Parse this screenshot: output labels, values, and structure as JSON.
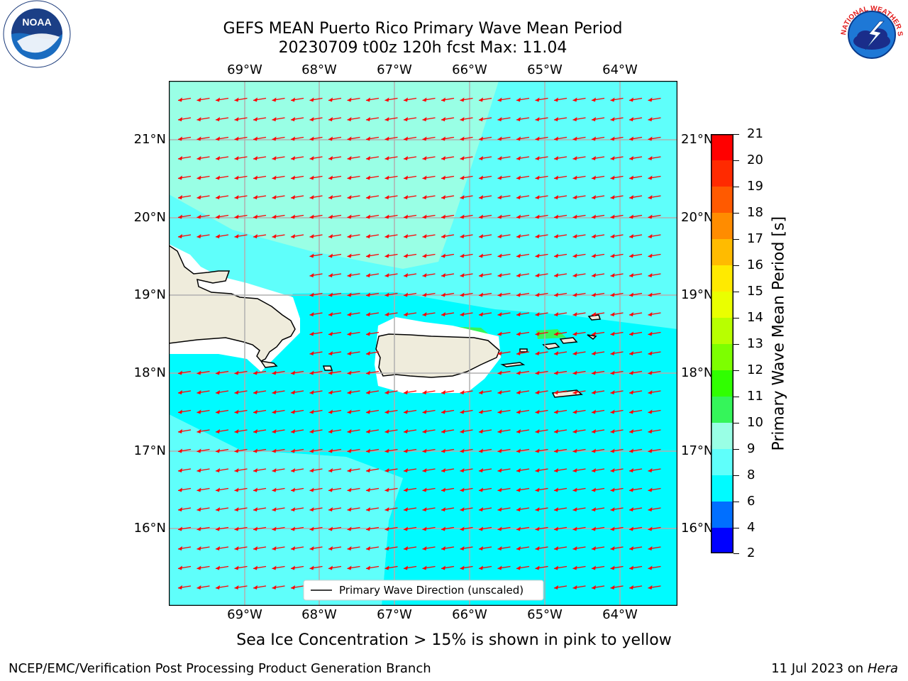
{
  "title": {
    "line1": "GEFS MEAN Puerto Rico Primary Wave Mean Period",
    "line2": "20230709 t00z 120h fcst   Max: 11.04"
  },
  "logos": {
    "noaa": "NOAA",
    "nws_ring": "NATIONAL WEATHER SERVICE",
    "noaa_ring": "NATIONAL OCEANIC AND ATMOSPHERIC ADMINISTRATION · U.S. DEPARTMENT OF COMMERCE"
  },
  "map": {
    "lon_labels": [
      "69°W",
      "68°W",
      "67°W",
      "66°W",
      "65°W",
      "64°W"
    ],
    "lat_labels": [
      "21°N",
      "20°N",
      "19°N",
      "18°N",
      "17°N",
      "16°N"
    ],
    "legend": "Primary Wave Direction (unscaled)",
    "arrow_direction": "west / west-southwest",
    "colors": {
      "band_8_9": "#5ffffb",
      "band_9_10": "#99ffe5",
      "band_6_8": "#00fbff",
      "land": "#efecdc",
      "arrow": "#ff0000",
      "grid": "#b0b0b0"
    }
  },
  "colorbar": {
    "label": "Primary Wave Mean Period [s]",
    "ticks": [
      "21",
      "20",
      "19",
      "18",
      "17",
      "16",
      "15",
      "14",
      "13",
      "12",
      "11",
      "10",
      "9",
      "8",
      "6",
      "4",
      "2"
    ],
    "colors_top_to_bottom": [
      "#ff0000",
      "#ff2a00",
      "#ff5a00",
      "#ff8c00",
      "#ffbb00",
      "#ffea00",
      "#eaff00",
      "#b8ff00",
      "#7dff00",
      "#30ff00",
      "#35f55a",
      "#99ffe5",
      "#5ffffb",
      "#00fbff",
      "#006fff",
      "#0000ff"
    ]
  },
  "caption": "Sea Ice Concentration > 15% is shown in pink to yellow",
  "footer": {
    "left": "NCEP/EMC/Verification Post Processing Product Generation Branch",
    "right_date": "11 Jul 2023 on ",
    "right_host": "Hera"
  }
}
